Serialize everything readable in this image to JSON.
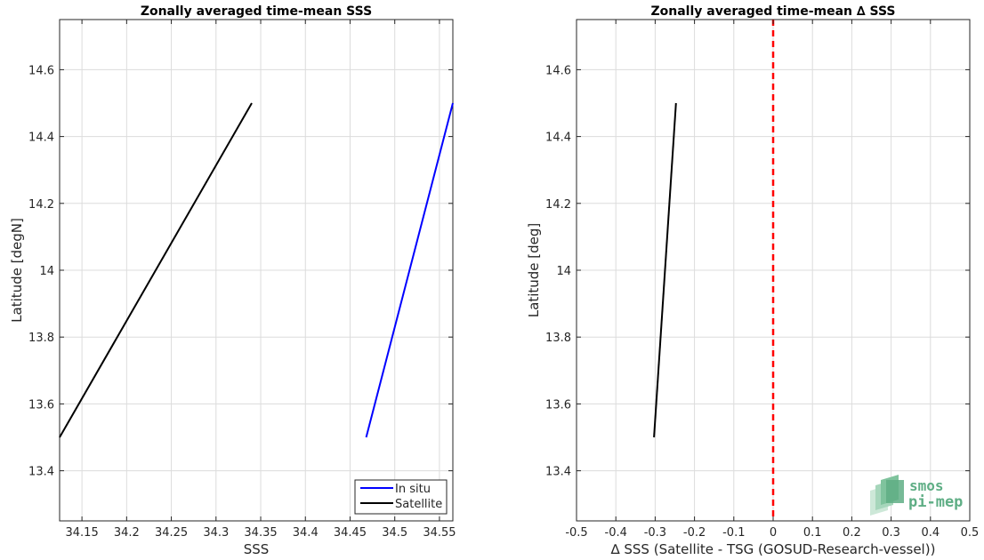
{
  "charts": [
    {
      "type": "line",
      "title": "Zonally averaged time-mean SSS",
      "xlabel": "SSS",
      "ylabel": "Latitude [degN]",
      "xlim": [
        34.125,
        34.565
      ],
      "ylim": [
        13.25,
        14.75
      ],
      "xticks": [
        "34.15",
        "34.2",
        "34.25",
        "34.3",
        "34.35",
        "34.4",
        "34.45",
        "34.5",
        "34.55"
      ],
      "yticks": [
        "13.4",
        "13.6",
        "13.8",
        "14",
        "14.2",
        "14.4",
        "14.6"
      ],
      "grid": true,
      "legend": {
        "placement": "bottom-right",
        "entries": [
          "In situ",
          "Satellite"
        ]
      },
      "series": [
        {
          "name": "In situ",
          "color": "#0000ff",
          "points": [
            [
              34.468,
              13.5
            ],
            [
              34.565,
              14.5
            ]
          ]
        },
        {
          "name": "Satellite",
          "color": "#000000",
          "points": [
            [
              34.125,
              13.5
            ],
            [
              34.34,
              14.5
            ]
          ]
        }
      ]
    },
    {
      "type": "line",
      "title": "Zonally averaged time-mean ∆ SSS",
      "xlabel": "∆ SSS (Satellite - TSG (GOSUD-Research-vessel))",
      "ylabel": "Latitude [deg]",
      "xlim": [
        -0.5,
        0.5
      ],
      "ylim": [
        13.25,
        14.75
      ],
      "xticks": [
        "-0.5",
        "-0.4",
        "-0.3",
        "-0.2",
        "-0.1",
        "0",
        "0.1",
        "0.2",
        "0.3",
        "0.4",
        "0.5"
      ],
      "yticks": [
        "13.4",
        "13.6",
        "13.8",
        "14",
        "14.2",
        "14.4",
        "14.6"
      ],
      "grid": true,
      "reference_line": {
        "x": 0,
        "color": "#ff0000",
        "style": "dashed"
      },
      "series": [
        {
          "color": "#000000",
          "points": [
            [
              -0.303,
              13.5
            ],
            [
              -0.247,
              14.5
            ]
          ]
        }
      ]
    }
  ],
  "logo": {
    "line1": "smos",
    "line2": "pi-mep",
    "color": "#5fae85"
  }
}
